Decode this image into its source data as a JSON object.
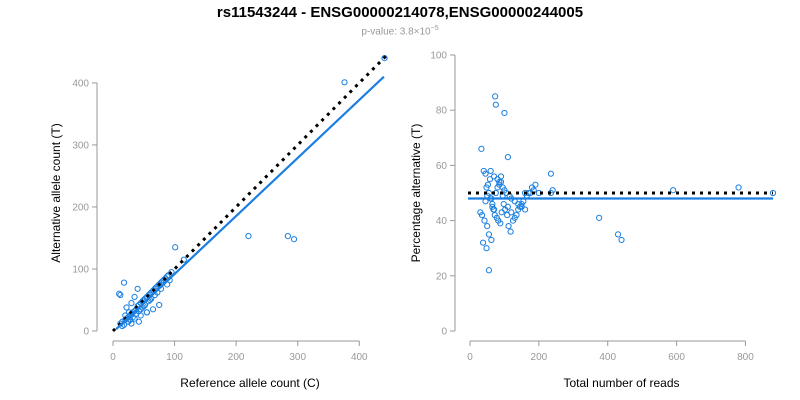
{
  "title": "rs11543244 - ENSG00000214078,ENSG00000244005",
  "subtitle": {
    "prefix": "p-value: 3.8×10",
    "exponent": "−5"
  },
  "colors": {
    "points": "#1a7fe0",
    "regression": "#1a7fe0",
    "reference": "#000000",
    "axis": "#999999"
  },
  "chart_data": [
    {
      "type": "scatter",
      "xlabel": "Reference allele count (C)",
      "ylabel": "Alternative allele count (T)",
      "xlim": [
        0,
        445
      ],
      "ylim": [
        0,
        445
      ],
      "xticks": [
        0,
        100,
        200,
        300,
        400
      ],
      "yticks": [
        0,
        100,
        200,
        300,
        400
      ],
      "reference_line": {
        "style": "dotted",
        "from": [
          0,
          0
        ],
        "to": [
          445,
          445
        ]
      },
      "fit_line": {
        "style": "solid",
        "from": [
          5,
          3
        ],
        "to": [
          440,
          410
        ]
      },
      "x": [
        441,
        376,
        220,
        284,
        294,
        101,
        12,
        15,
        20,
        22,
        18,
        25,
        28,
        30,
        32,
        35,
        38,
        40,
        42,
        45,
        48,
        50,
        52,
        55,
        58,
        60,
        62,
        65,
        68,
        70,
        72,
        75,
        78,
        80,
        82,
        85,
        88,
        90,
        95,
        10,
        12,
        22,
        30,
        35,
        40,
        45,
        50,
        55,
        60,
        18,
        25,
        35,
        45,
        55,
        65,
        75,
        28,
        32,
        38,
        42,
        48,
        52,
        58,
        62,
        68,
        72,
        78,
        88,
        92,
        115,
        30,
        42,
        15,
        20,
        26
      ],
      "y": [
        440,
        401,
        153,
        153,
        148,
        135,
        12,
        15,
        18,
        20,
        78,
        22,
        25,
        28,
        30,
        32,
        35,
        40,
        42,
        45,
        48,
        50,
        52,
        55,
        58,
        60,
        62,
        65,
        68,
        70,
        72,
        75,
        78,
        80,
        82,
        85,
        88,
        90,
        95,
        60,
        58,
        38,
        45,
        55,
        68,
        35,
        40,
        30,
        50,
        10,
        15,
        20,
        25,
        30,
        35,
        42,
        18,
        22,
        28,
        32,
        38,
        42,
        48,
        52,
        58,
        62,
        68,
        75,
        82,
        115,
        12,
        15,
        8,
        25,
        30
      ]
    },
    {
      "type": "scatter",
      "xlabel": "Total number of reads",
      "ylabel": "Percentage alternative (T)",
      "xlim": [
        0,
        880
      ],
      "ylim": [
        0,
        100
      ],
      "xticks": [
        0,
        200,
        400,
        600,
        800
      ],
      "yticks": [
        0,
        20,
        40,
        60,
        80,
        100
      ],
      "reference_line": {
        "style": "dotted",
        "y": 50
      },
      "fit_line": {
        "style": "solid",
        "y": 48
      },
      "x": [
        880,
        780,
        590,
        440,
        430,
        375,
        240,
        235,
        235,
        73,
        75,
        100,
        110,
        55,
        33,
        60,
        70,
        80,
        85,
        90,
        95,
        100,
        105,
        115,
        120,
        130,
        140,
        150,
        160,
        170,
        180,
        190,
        200,
        45,
        50,
        52,
        58,
        62,
        65,
        68,
        72,
        78,
        82,
        88,
        92,
        98,
        102,
        108,
        112,
        118,
        125,
        135,
        145,
        155,
        165,
        175,
        185,
        40,
        45,
        48,
        55,
        60,
        65,
        70,
        75,
        80,
        85,
        90,
        95,
        110,
        120,
        130,
        140,
        150,
        160,
        35,
        42,
        50,
        38,
        55,
        62,
        48,
        30
      ],
      "y": [
        50,
        52,
        51,
        33,
        35,
        41,
        51,
        57,
        50,
        85,
        82,
        79,
        63,
        22,
        66,
        58,
        56,
        55,
        53,
        54,
        52,
        51,
        50,
        49,
        48,
        47,
        46,
        45,
        44,
        50,
        52,
        53,
        50,
        47,
        49,
        53,
        55,
        48,
        45,
        44,
        42,
        41,
        40,
        39,
        43,
        46,
        44,
        42,
        38,
        36,
        40,
        42,
        45,
        47,
        49,
        50,
        51,
        58,
        57,
        52,
        50,
        48,
        46,
        44,
        50,
        52,
        54,
        56,
        49,
        45,
        43,
        41,
        44,
        46,
        50,
        42,
        40,
        38,
        32,
        35,
        33,
        30,
        43
      ]
    }
  ]
}
